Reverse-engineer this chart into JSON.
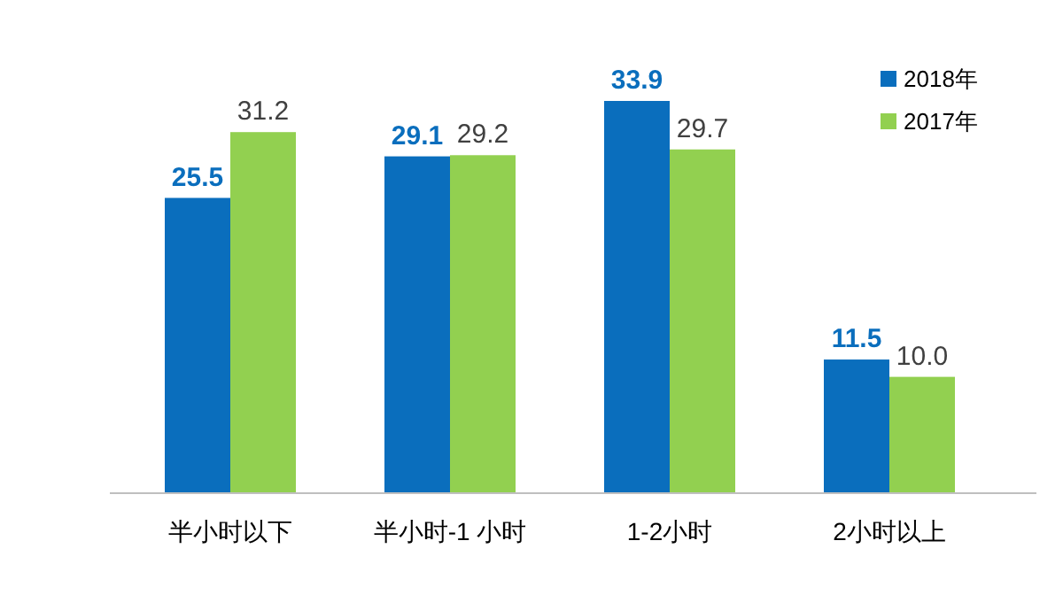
{
  "chart_data": {
    "type": "bar",
    "categories": [
      "半小时以下",
      "半小时-1 小时",
      "1-2小时",
      "2小时以上"
    ],
    "series": [
      {
        "name": "2018年",
        "color": "#0a6ebd",
        "values": [
          25.5,
          29.1,
          33.9,
          11.5
        ],
        "value_labels": [
          "25.5",
          "29.1",
          "33.9",
          "11.5"
        ]
      },
      {
        "name": "2017年",
        "color": "#92d050",
        "values": [
          31.2,
          29.2,
          29.7,
          10.0
        ],
        "value_labels": [
          "31.2",
          "29.2",
          "29.7",
          "10.0"
        ]
      }
    ],
    "legend": "top right"
  }
}
